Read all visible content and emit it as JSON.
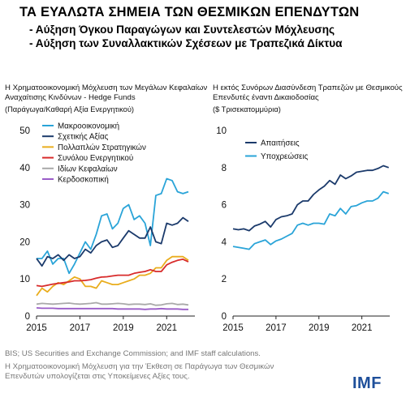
{
  "header": {
    "title": "ΤΑ ΕΥΑΛΩΤΑ ΣΗΜΕΙΑ ΤΩΝ ΘΕΣΜΙΚΩΝ ΕΠΕΝΔΥΤΩΝ",
    "bullet1": "- Αύξηση Όγκου Παραγώγων και Συντελεστών Μόχλευσης",
    "bullet2": "- Αύξηση των Συναλλακτικών Σχέσεων με Τραπεζικά Δίκτυα"
  },
  "footer": {
    "source": "BIS; US Securities and Exchange Commission; and IMF staff calculations.",
    "note": "Η Χρηματοοικονομική Μόχλευση για την Έκθεση σε Παράγωγα των Θεσμικών Επενδυτών υπολογίζεται στις Υποκείμενες Αξίες τους.",
    "logo_text": "IMF"
  },
  "chart_data": [
    {
      "type": "line",
      "title": "Η Χρηματοοικονομική Μόχλευση των Μεγάλων Κεφαλαίων Αναχαίτισης Κινδύνων - Hedge Funds",
      "ylabel": "(Παράγωγα/Καθαρή Αξία Ενεργητικού)",
      "xlim": [
        2015,
        2022.3
      ],
      "ylim": [
        0,
        50
      ],
      "x_ticks": [
        2015,
        2017,
        2019,
        2021
      ],
      "y_ticks": [
        0,
        10,
        20,
        30,
        40,
        50
      ],
      "grid": false,
      "legend": "top-left",
      "series": [
        {
          "name": "Μακροοικονομική",
          "color": "#2aa4d8",
          "x": [
            2015.0,
            2015.25,
            2015.5,
            2015.75,
            2016.0,
            2016.25,
            2016.5,
            2016.75,
            2017.0,
            2017.25,
            2017.5,
            2017.75,
            2018.0,
            2018.25,
            2018.5,
            2018.75,
            2019.0,
            2019.25,
            2019.5,
            2019.75,
            2020.0,
            2020.25,
            2020.5,
            2020.75,
            2021.0,
            2021.25,
            2021.5,
            2021.75,
            2022.0
          ],
          "values": [
            15.5,
            15.5,
            17.5,
            14,
            15.5,
            15.5,
            11.5,
            14,
            17,
            20,
            18,
            22,
            27,
            27.5,
            23.5,
            25,
            29,
            30,
            26,
            27,
            25,
            19,
            32.5,
            33,
            37,
            36.5,
            33.5,
            33,
            33.5
          ]
        },
        {
          "name": "Σχετικής Αξίας",
          "color": "#1b3a6b",
          "x": [
            2015.0,
            2015.25,
            2015.5,
            2015.75,
            2016.0,
            2016.25,
            2016.5,
            2016.75,
            2017.0,
            2017.25,
            2017.5,
            2017.75,
            2018.0,
            2018.25,
            2018.5,
            2018.75,
            2019.0,
            2019.25,
            2019.5,
            2019.75,
            2020.0,
            2020.25,
            2020.5,
            2020.75,
            2021.0,
            2021.25,
            2021.5,
            2021.75,
            2022.0
          ],
          "values": [
            15.5,
            13.5,
            16,
            15.5,
            16.5,
            15,
            16.5,
            15.5,
            16,
            18,
            17,
            19,
            20,
            20.5,
            18.5,
            19,
            21,
            23,
            22,
            21,
            21,
            24,
            20,
            19.5,
            25,
            24.5,
            25,
            26.5,
            25.5
          ]
        },
        {
          "name": "Πολλαπλών Στρατηγικών",
          "color": "#e9ad1d",
          "x": [
            2015.0,
            2015.25,
            2015.5,
            2015.75,
            2016.0,
            2016.25,
            2016.5,
            2016.75,
            2017.0,
            2017.25,
            2017.5,
            2017.75,
            2018.0,
            2018.25,
            2018.5,
            2018.75,
            2019.0,
            2019.25,
            2019.5,
            2019.75,
            2020.0,
            2020.25,
            2020.5,
            2020.75,
            2021.0,
            2021.25,
            2021.5,
            2021.75,
            2022.0
          ],
          "values": [
            5.5,
            7.5,
            6.5,
            8,
            9,
            8.5,
            9.5,
            10.5,
            10,
            8,
            8,
            7.5,
            9.5,
            9,
            8.5,
            8.5,
            9,
            9.5,
            10,
            11,
            11,
            11.5,
            13,
            13,
            15,
            16,
            16,
            16,
            15
          ]
        },
        {
          "name": "Συνόλου Ενεργητικού",
          "color": "#d82b2b",
          "x": [
            2015.0,
            2015.25,
            2015.5,
            2015.75,
            2016.0,
            2016.25,
            2016.5,
            2016.75,
            2017.0,
            2017.25,
            2017.5,
            2017.75,
            2018.0,
            2018.25,
            2018.5,
            2018.75,
            2019.0,
            2019.25,
            2019.5,
            2019.75,
            2020.0,
            2020.25,
            2020.5,
            2020.75,
            2021.0,
            2021.25,
            2021.5,
            2021.75,
            2022.0
          ],
          "values": [
            8.2,
            8,
            8.3,
            8.6,
            8.8,
            9,
            9.2,
            9.5,
            9.5,
            9.6,
            9.8,
            10.2,
            10.5,
            10.6,
            10.8,
            11,
            11,
            11,
            11.5,
            11.8,
            12,
            12.5,
            12,
            12,
            13.8,
            14.5,
            15,
            15.3,
            14.6
          ]
        },
        {
          "name": "Ιδίων Κεφαλαίων",
          "color": "#a9a9a9",
          "x": [
            2015.0,
            2015.25,
            2015.5,
            2015.75,
            2016.0,
            2016.25,
            2016.5,
            2016.75,
            2017.0,
            2017.25,
            2017.5,
            2017.75,
            2018.0,
            2018.25,
            2018.5,
            2018.75,
            2019.0,
            2019.25,
            2019.5,
            2019.75,
            2020.0,
            2020.25,
            2020.5,
            2020.75,
            2021.0,
            2021.25,
            2021.5,
            2021.75,
            2022.0
          ],
          "values": [
            3.2,
            3.4,
            3.3,
            3.2,
            3.3,
            3.4,
            3.5,
            3.3,
            3.2,
            3.3,
            3.4,
            3.6,
            3.2,
            3.2,
            3.3,
            3.4,
            3.3,
            3.1,
            3.2,
            3.2,
            3.1,
            3.3,
            2.9,
            3,
            3.3,
            3.4,
            3.1,
            3.2,
            3
          ]
        },
        {
          "name": "Κερδοσκοπική",
          "color": "#9a5cc8",
          "x": [
            2015.0,
            2015.25,
            2015.5,
            2015.75,
            2016.0,
            2016.25,
            2016.5,
            2016.75,
            2017.0,
            2017.25,
            2017.5,
            2017.75,
            2018.0,
            2018.25,
            2018.5,
            2018.75,
            2019.0,
            2019.25,
            2019.5,
            2019.75,
            2020.0,
            2020.25,
            2020.5,
            2020.75,
            2021.0,
            2021.25,
            2021.5,
            2021.75,
            2022.0
          ],
          "values": [
            2.2,
            2.1,
            2.1,
            2.1,
            2,
            2,
            2,
            2,
            2,
            2,
            2,
            2,
            2,
            2,
            2,
            1.9,
            1.9,
            1.9,
            1.9,
            1.9,
            1.8,
            1.9,
            1.9,
            2,
            1.9,
            1.9,
            1.9,
            1.8,
            1.8
          ]
        }
      ]
    },
    {
      "type": "line",
      "title": "Η εκτός Συνόρων Διασύνδεση Τραπεζών με Θεσμικούς Επενδυτές έναντι Δικαιοδοσίας",
      "ylabel": "($ Τρισεκατομμύρια)",
      "xlim": [
        2015,
        2022.3
      ],
      "ylim": [
        0,
        10
      ],
      "x_ticks": [
        2015,
        2017,
        2019,
        2021
      ],
      "y_ticks": [
        0,
        2,
        4,
        6,
        8,
        10
      ],
      "grid": false,
      "legend": "top-left",
      "series": [
        {
          "name": "Απαιτήσεις",
          "color": "#1b3a6b",
          "x": [
            2015.0,
            2015.25,
            2015.5,
            2015.75,
            2016.0,
            2016.25,
            2016.5,
            2016.75,
            2017.0,
            2017.25,
            2017.5,
            2017.75,
            2018.0,
            2018.25,
            2018.5,
            2018.75,
            2019.0,
            2019.25,
            2019.5,
            2019.75,
            2020.0,
            2020.25,
            2020.5,
            2020.75,
            2021.0,
            2021.25,
            2021.5,
            2021.75,
            2022.0,
            2022.25
          ],
          "values": [
            4.7,
            4.65,
            4.7,
            4.6,
            4.85,
            4.95,
            5.1,
            4.8,
            5.2,
            5.35,
            5.4,
            5.5,
            6.0,
            6.2,
            6.2,
            6.55,
            6.8,
            7.0,
            7.3,
            7.1,
            7.6,
            7.4,
            7.55,
            7.75,
            7.8,
            7.85,
            7.85,
            7.95,
            8.1,
            8.0
          ]
        },
        {
          "name": "Υποχρεώσεις",
          "color": "#2aa4d8",
          "x": [
            2015.0,
            2015.25,
            2015.5,
            2015.75,
            2016.0,
            2016.25,
            2016.5,
            2016.75,
            2017.0,
            2017.25,
            2017.5,
            2017.75,
            2018.0,
            2018.25,
            2018.5,
            2018.75,
            2019.0,
            2019.25,
            2019.5,
            2019.75,
            2020.0,
            2020.25,
            2020.5,
            2020.75,
            2021.0,
            2021.25,
            2021.5,
            2021.75,
            2022.0,
            2022.25
          ],
          "values": [
            3.75,
            3.7,
            3.65,
            3.6,
            3.9,
            4.0,
            4.1,
            3.85,
            4.05,
            4.15,
            4.3,
            4.45,
            4.9,
            5.0,
            4.9,
            5.0,
            5.0,
            4.95,
            5.5,
            5.4,
            5.8,
            5.5,
            5.9,
            5.95,
            6.1,
            6.2,
            6.2,
            6.35,
            6.7,
            6.6
          ]
        }
      ]
    }
  ]
}
